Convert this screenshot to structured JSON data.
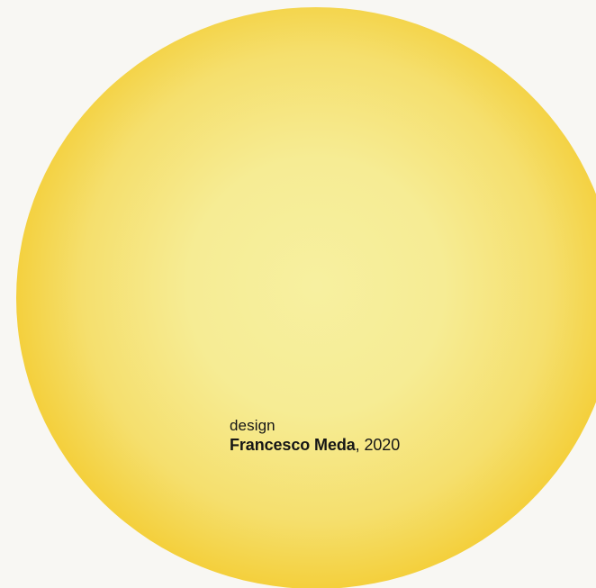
{
  "credit": {
    "label": "design",
    "designer": "Francesco Meda",
    "separator": ", ",
    "year": "2020"
  },
  "colors": {
    "background": "#f8f7f3",
    "sun_center": "#f7f0a0",
    "sun_edge": "#f2b900",
    "text": "#161616"
  }
}
